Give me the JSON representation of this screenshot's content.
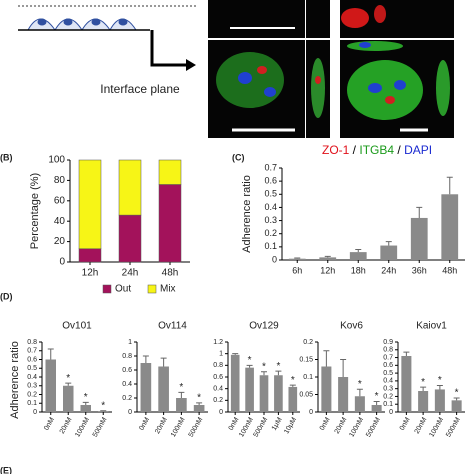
{
  "figure": {
    "interface_label": "Interface plane",
    "stain_parts": [
      {
        "text": "ZO-1",
        "color": "#e0101a"
      },
      {
        "text": " / ",
        "color": "#000000"
      },
      {
        "text": "ITGB4",
        "color": "#1a9a1a"
      },
      {
        "text": " / ",
        "color": "#000000"
      },
      {
        "text": "DAPI",
        "color": "#1a2ad0"
      }
    ],
    "panel_b": "(B)",
    "panel_c": "(C)",
    "panel_d": "(D)",
    "panel_e": "(E)",
    "d_ylabel": "Adherence ratio"
  },
  "chart_data": [
    {
      "type": "bar",
      "stacked": true,
      "ylabel": "Percentage (%)",
      "categories": [
        "12h",
        "24h",
        "48h"
      ],
      "series": [
        {
          "name": "Out",
          "color": "#a3125b",
          "values": [
            13,
            46,
            76
          ]
        },
        {
          "name": "Mix",
          "color": "#f7f516",
          "values": [
            87,
            54,
            24
          ]
        }
      ],
      "ylim": [
        0,
        100
      ],
      "yticks": [
        0,
        20,
        40,
        60,
        80,
        100
      ],
      "legend": "bottom"
    },
    {
      "type": "bar",
      "ylabel": "Adherence ratio",
      "categories": [
        "6h",
        "12h",
        "18h",
        "24h",
        "36h",
        "48h"
      ],
      "values": [
        0.01,
        0.02,
        0.06,
        0.11,
        0.32,
        0.5
      ],
      "errors": [
        0.005,
        0.008,
        0.02,
        0.03,
        0.08,
        0.13
      ],
      "color": "#8a8a8a",
      "ylim": [
        0,
        0.7
      ],
      "yticks": [
        0,
        0.1,
        0.2,
        0.3,
        0.4,
        0.5,
        0.6,
        0.7
      ]
    },
    {
      "type": "bar",
      "title": "Ov101",
      "categories": [
        "0nM",
        "20nM",
        "100nM",
        "500nM"
      ],
      "values": [
        0.6,
        0.3,
        0.08,
        0.01
      ],
      "errors": [
        0.12,
        0.03,
        0.03,
        0.005
      ],
      "significance": [
        null,
        "*",
        "*",
        "*"
      ],
      "color": "#8a8a8a",
      "ylim": [
        0,
        0.8
      ],
      "yticks": [
        0,
        0.1,
        0.2,
        0.3,
        0.4,
        0.5,
        0.6,
        0.7,
        0.8
      ]
    },
    {
      "type": "bar",
      "title": "Ov114",
      "categories": [
        "0nM",
        "20nM",
        "100nM",
        "500nM"
      ],
      "values": [
        0.7,
        0.65,
        0.2,
        0.1
      ],
      "errors": [
        0.1,
        0.12,
        0.08,
        0.03
      ],
      "significance": [
        null,
        null,
        "*",
        "*"
      ],
      "color": "#8a8a8a",
      "ylim": [
        0,
        1
      ],
      "yticks": [
        0,
        0.2,
        0.4,
        0.6,
        0.8,
        1
      ]
    },
    {
      "type": "bar",
      "title": "Ov129",
      "categories": [
        "0nM",
        "100nM",
        "500nM",
        "1μM",
        "10μM"
      ],
      "values": [
        0.98,
        0.76,
        0.63,
        0.63,
        0.43
      ],
      "errors": [
        0.02,
        0.04,
        0.06,
        0.07,
        0.03
      ],
      "significance": [
        null,
        "*",
        "*",
        "*",
        "*"
      ],
      "color": "#8a8a8a",
      "ylim": [
        0,
        1.2
      ],
      "yticks": [
        0,
        0.2,
        0.4,
        0.6,
        0.8,
        1,
        1.2
      ]
    },
    {
      "type": "bar",
      "title": "Kov6",
      "categories": [
        "0nM",
        "20nM",
        "100nM",
        "500nM"
      ],
      "values": [
        0.13,
        0.1,
        0.045,
        0.02
      ],
      "errors": [
        0.045,
        0.05,
        0.02,
        0.01
      ],
      "significance": [
        null,
        null,
        "*",
        "*"
      ],
      "color": "#8a8a8a",
      "ylim": [
        0,
        0.2
      ],
      "yticks": [
        0,
        0.05,
        0.1,
        0.15,
        0.2
      ]
    },
    {
      "type": "bar",
      "title": "Kaiov1",
      "categories": [
        "0nM",
        "20nM",
        "100nM",
        "500nM"
      ],
      "values": [
        0.72,
        0.27,
        0.29,
        0.15
      ],
      "errors": [
        0.05,
        0.05,
        0.05,
        0.03
      ],
      "significance": [
        null,
        "*",
        "*",
        "*"
      ],
      "color": "#8a8a8a",
      "ylim": [
        0,
        0.9
      ],
      "yticks": [
        0,
        0.1,
        0.2,
        0.3,
        0.4,
        0.5,
        0.6,
        0.7,
        0.8,
        0.9
      ]
    }
  ]
}
